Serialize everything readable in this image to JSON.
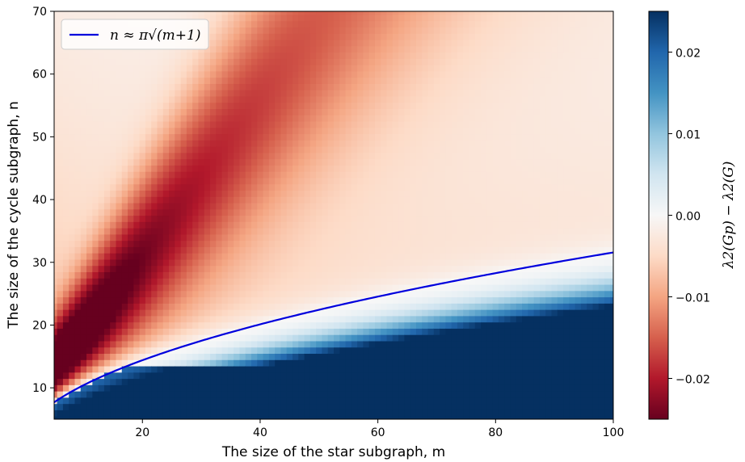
{
  "chart_data": {
    "type": "heatmap",
    "xlabel": "The size of the star subgraph, m",
    "ylabel": "The size of the cycle subgraph, n",
    "xlim": [
      5,
      100
    ],
    "ylim": [
      5,
      70
    ],
    "xticks": [
      "20",
      "40",
      "60",
      "80",
      "100"
    ],
    "xtick_values": [
      20,
      40,
      60,
      80,
      100
    ],
    "yticks": [
      "10",
      "20",
      "30",
      "40",
      "50",
      "60",
      "70"
    ],
    "ytick_values": [
      10,
      20,
      30,
      40,
      50,
      60,
      70
    ],
    "grid": false,
    "colormap": "RdBu",
    "colorbar": {
      "label": "λ2(Gp) − λ2(G)",
      "range": [
        -0.025,
        0.025
      ],
      "ticks": [
        "−0.02",
        "−0.01",
        "0.00",
        "0.01",
        "0.02"
      ],
      "tick_values": [
        -0.02,
        -0.01,
        0.0,
        0.01,
        0.02
      ]
    },
    "curve": {
      "name": "n ≈ π√(m+1)",
      "color": "#0000dd",
      "formula": "pi*sqrt(m+1)"
    },
    "legend_position": "top-left"
  }
}
